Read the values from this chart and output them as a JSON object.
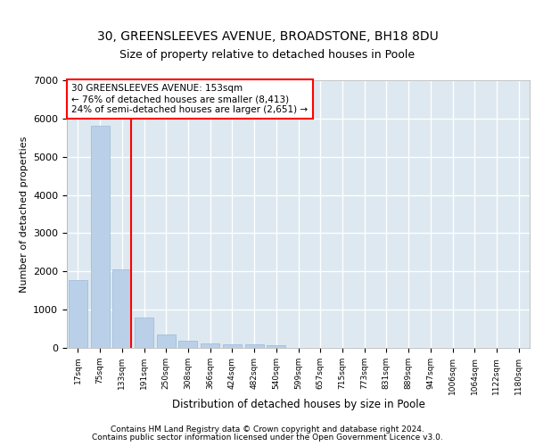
{
  "title_line1": "30, GREENSLEEVES AVENUE, BROADSTONE, BH18 8DU",
  "title_line2": "Size of property relative to detached houses in Poole",
  "xlabel": "Distribution of detached houses by size in Poole",
  "ylabel": "Number of detached properties",
  "bar_color": "#bad0e8",
  "bar_edgecolor": "#9ab8d8",
  "categories": [
    "17sqm",
    "75sqm",
    "133sqm",
    "191sqm",
    "250sqm",
    "308sqm",
    "366sqm",
    "424sqm",
    "482sqm",
    "540sqm",
    "599sqm",
    "657sqm",
    "715sqm",
    "773sqm",
    "831sqm",
    "889sqm",
    "947sqm",
    "1006sqm",
    "1064sqm",
    "1122sqm",
    "1180sqm"
  ],
  "values": [
    1780,
    5800,
    2060,
    800,
    340,
    195,
    120,
    105,
    90,
    70,
    0,
    0,
    0,
    0,
    0,
    0,
    0,
    0,
    0,
    0,
    0
  ],
  "ylim": [
    0,
    7000
  ],
  "yticks": [
    0,
    1000,
    2000,
    3000,
    4000,
    5000,
    6000,
    7000
  ],
  "annotation_title": "30 GREENSLEEVES AVENUE: 153sqm",
  "annotation_line2": "← 76% of detached houses are smaller (8,413)",
  "annotation_line3": "24% of semi-detached houses are larger (2,651) →",
  "red_line_x": 2,
  "footer_line1": "Contains HM Land Registry data © Crown copyright and database right 2024.",
  "footer_line2": "Contains public sector information licensed under the Open Government Licence v3.0.",
  "background_color": "#dde8f0",
  "grid_color": "#ffffff",
  "title_fontsize": 10,
  "subtitle_fontsize": 9,
  "footer_fontsize": 6.5
}
